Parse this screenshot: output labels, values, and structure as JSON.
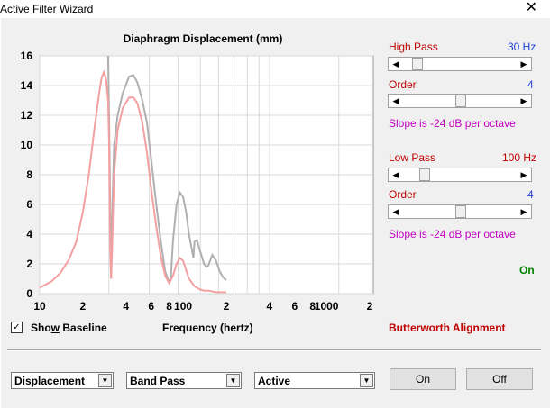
{
  "window": {
    "title": "Active Filter Wizard",
    "close_glyph": "✕"
  },
  "chart_data": {
    "type": "line",
    "title": "Diaphragm Displacement (mm)",
    "xlabel": "Frequency (hertz)",
    "ylabel": "",
    "xscale": "log",
    "xlim": [
      10,
      200
    ],
    "ylim": [
      0,
      16
    ],
    "yticks": [
      "0",
      "2",
      "4",
      "6",
      "8",
      "10",
      "12",
      "14",
      "16"
    ],
    "xticks": [
      "10",
      "2",
      "4",
      "6",
      "8",
      "100",
      "2",
      "4",
      "6",
      "8",
      "1000",
      "2"
    ],
    "grid": true,
    "series": [
      {
        "color": "#b0b0b0",
        "x": [
          30,
          30.5,
          31,
          31.3,
          31.5,
          32,
          33,
          35,
          38,
          42,
          45,
          48,
          52,
          56,
          60,
          65,
          70,
          75,
          80,
          82,
          85,
          90,
          95,
          100,
          105,
          110,
          115,
          118,
          120,
          125,
          130,
          135,
          140,
          145,
          150,
          160,
          170,
          180,
          190,
          200
        ],
        "y": [
          16,
          12,
          6,
          2,
          1,
          5,
          10,
          12,
          13.5,
          14.6,
          14.7,
          14.2,
          13,
          11.5,
          9,
          6,
          3.5,
          1.5,
          0.8,
          1,
          3.5,
          6,
          6.8,
          6.5,
          5.5,
          4,
          3,
          2.4,
          3.5,
          3.6,
          3,
          2.5,
          2,
          1.8,
          1.9,
          2.6,
          2.2,
          1.5,
          1.1,
          0.9
        ]
      },
      {
        "color": "#f4a0a0",
        "x": [
          10,
          12,
          14,
          16,
          18,
          20,
          22,
          24,
          26,
          27,
          28,
          29,
          30,
          30.5,
          31,
          31.5,
          32,
          33,
          35,
          38,
          42,
          45,
          48,
          52,
          56,
          60,
          65,
          70,
          75,
          80,
          85,
          90,
          95,
          100,
          110,
          120,
          130,
          140,
          150,
          170,
          200
        ],
        "y": [
          0.4,
          0.8,
          1.4,
          2.3,
          3.5,
          5.5,
          8,
          11,
          13.5,
          14.5,
          14.9,
          14.5,
          13,
          10,
          3,
          1,
          3,
          8,
          11,
          12.5,
          13.2,
          13.2,
          12.8,
          11.5,
          9.5,
          7,
          4.5,
          2.5,
          1.2,
          0.7,
          1.2,
          2,
          2.4,
          2.2,
          1,
          0.5,
          0.3,
          0.2,
          0.2,
          0.1,
          0.1
        ]
      }
    ]
  },
  "high_pass": {
    "label": "High Pass",
    "value": "30 Hz",
    "position": 0.07
  },
  "hp_order": {
    "label": "Order",
    "value": "4",
    "position": 0.48
  },
  "hp_slope": "Slope is -24 dB per octave",
  "low_pass": {
    "label": "Low Pass",
    "value": "100 Hz",
    "position": 0.13
  },
  "lp_order": {
    "label": "Order",
    "value": "4",
    "position": 0.48
  },
  "lp_slope": "Slope is -24 dB per octave",
  "status_on": "On",
  "show_baseline": {
    "label_pre": "Sho",
    "label_ul": "w",
    "label_post": " Baseline",
    "checked": true
  },
  "alignment": "Butterworth Alignment",
  "combos": {
    "mode": "Displacement",
    "type": "Band Pass",
    "kind": "Active"
  },
  "buttons": {
    "on": "On",
    "off": "Off"
  },
  "colors": {
    "accent_red": "#c00000",
    "accent_blue": "#1f3fd6",
    "magenta": "#c000c0",
    "green": "#008000"
  }
}
